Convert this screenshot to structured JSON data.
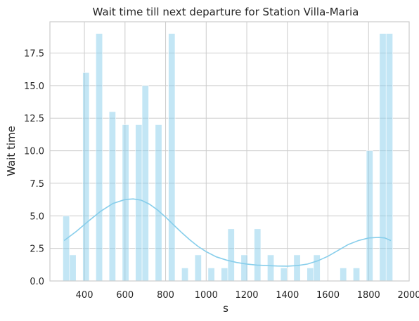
{
  "chart_data": {
    "type": "bar",
    "title": "Wait time till next departure for Station Villa-Maria",
    "xlabel": "s",
    "ylabel": "Wait time",
    "xlim": [
      230,
      2000
    ],
    "ylim": [
      0,
      19.9
    ],
    "grid": true,
    "bin_width": 32.5,
    "bins": [
      {
        "x0": 294,
        "count": 5
      },
      {
        "x0": 326.5,
        "count": 2
      },
      {
        "x0": 391.5,
        "count": 16
      },
      {
        "x0": 456.5,
        "count": 19
      },
      {
        "x0": 521.5,
        "count": 13
      },
      {
        "x0": 586.5,
        "count": 12
      },
      {
        "x0": 651.5,
        "count": 12
      },
      {
        "x0": 684,
        "count": 15
      },
      {
        "x0": 749,
        "count": 12
      },
      {
        "x0": 814,
        "count": 19
      },
      {
        "x0": 879,
        "count": 1
      },
      {
        "x0": 944,
        "count": 2
      },
      {
        "x0": 1009,
        "count": 1
      },
      {
        "x0": 1074,
        "count": 1
      },
      {
        "x0": 1106.5,
        "count": 4
      },
      {
        "x0": 1171.5,
        "count": 2
      },
      {
        "x0": 1236.5,
        "count": 4
      },
      {
        "x0": 1301.5,
        "count": 2
      },
      {
        "x0": 1366.5,
        "count": 1
      },
      {
        "x0": 1431.5,
        "count": 2
      },
      {
        "x0": 1496.5,
        "count": 1
      },
      {
        "x0": 1529,
        "count": 2
      },
      {
        "x0": 1659,
        "count": 1
      },
      {
        "x0": 1724,
        "count": 1
      },
      {
        "x0": 1789,
        "count": 10
      },
      {
        "x0": 1854,
        "count": 19
      },
      {
        "x0": 1886.5,
        "count": 19
      }
    ],
    "kde": {
      "x": [
        300,
        360,
        420,
        480,
        540,
        600,
        640,
        680,
        720,
        760,
        800,
        840,
        880,
        920,
        960,
        1000,
        1050,
        1100,
        1150,
        1200,
        1250,
        1300,
        1350,
        1400,
        1450,
        1500,
        1550,
        1600,
        1650,
        1700,
        1750,
        1800,
        1850,
        1880,
        1910
      ],
      "y": [
        3.1,
        3.8,
        4.6,
        5.35,
        5.95,
        6.25,
        6.3,
        6.2,
        5.9,
        5.45,
        4.9,
        4.3,
        3.7,
        3.15,
        2.65,
        2.25,
        1.85,
        1.6,
        1.42,
        1.3,
        1.22,
        1.18,
        1.15,
        1.14,
        1.18,
        1.3,
        1.55,
        1.9,
        2.35,
        2.8,
        3.1,
        3.3,
        3.35,
        3.3,
        3.1
      ]
    },
    "x_ticks": [
      400,
      600,
      800,
      1000,
      1200,
      1400,
      1600,
      1800,
      2000
    ],
    "y_ticks": [
      0.0,
      2.5,
      5.0,
      7.5,
      10.0,
      12.5,
      15.0,
      17.5
    ],
    "x_tick_labels": [
      "400",
      "600",
      "800",
      "1000",
      "1200",
      "1400",
      "1600",
      "1800",
      "2000"
    ],
    "y_tick_labels": [
      "0.0",
      "2.5",
      "5.0",
      "7.5",
      "10.0",
      "12.5",
      "15.0",
      "17.5"
    ],
    "colors": {
      "bars": "#87ceeb",
      "kde": "#87ceeb",
      "grid": "#cccccc",
      "text": "#262626"
    }
  }
}
